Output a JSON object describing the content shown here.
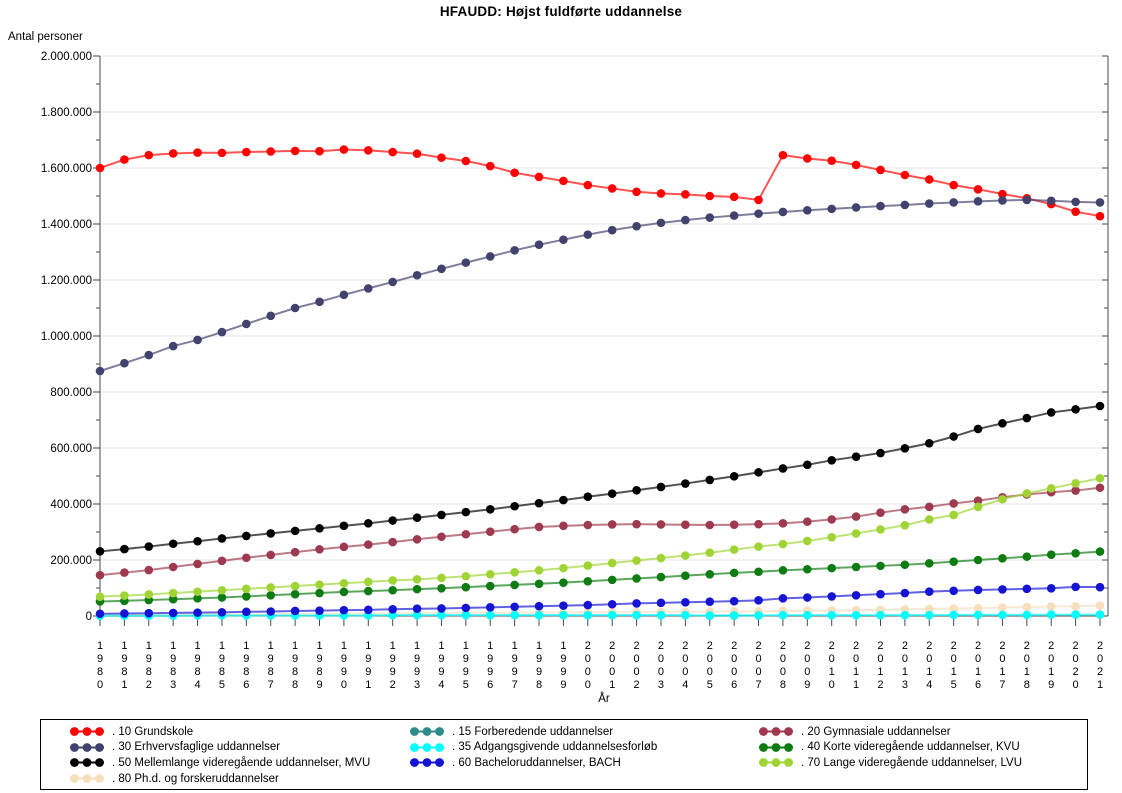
{
  "title": "HFAUDD: Højst fuldførte uddannelse",
  "chart_data": {
    "type": "line",
    "title": "HFAUDD: Højst fuldførte uddannelse",
    "xlabel": "År",
    "ylabel": "Antal personer",
    "ylim": [
      0,
      2000000
    ],
    "ytick_step": 200000,
    "ytick_labels": [
      "0",
      "200.000",
      "400.000",
      "600.000",
      "800.000",
      "1.000.000",
      "1.200.000",
      "1.400.000",
      "1.600.000",
      "1.800.000",
      "2.000.000"
    ],
    "grid": "horizontal-gray",
    "legend_position": "bottom-box-3-columns",
    "marker": "filled-circle-every-year",
    "x": [
      1980,
      1981,
      1982,
      1983,
      1984,
      1985,
      1986,
      1987,
      1988,
      1989,
      1990,
      1991,
      1992,
      1993,
      1994,
      1995,
      1996,
      1997,
      1998,
      1999,
      2000,
      2001,
      2002,
      2003,
      2004,
      2005,
      2006,
      2007,
      2008,
      2009,
      2010,
      2011,
      2012,
      2013,
      2014,
      2015,
      2016,
      2017,
      2018,
      2019,
      2020,
      2021
    ],
    "series": [
      {
        "code": "10",
        "label": ". 10 Grundskole",
        "color": "#FF0000",
        "values": [
          1600000,
          1630000,
          1646000,
          1652000,
          1655000,
          1654000,
          1657000,
          1659000,
          1661000,
          1660000,
          1666000,
          1663000,
          1657000,
          1651000,
          1637000,
          1625000,
          1607000,
          1583000,
          1568000,
          1554000,
          1539000,
          1527000,
          1515000,
          1509000,
          1506000,
          1500000,
          1497000,
          1486000,
          1646000,
          1634000,
          1626000,
          1611000,
          1593000,
          1575000,
          1559000,
          1539000,
          1524000,
          1507000,
          1492000,
          1471000,
          1444000,
          1428000
        ]
      },
      {
        "code": "15",
        "label": ". 15 Forberedende uddannelser",
        "color": "#2E8B8B",
        "values": [
          null,
          null,
          null,
          null,
          null,
          null,
          null,
          null,
          null,
          null,
          null,
          null,
          null,
          null,
          null,
          null,
          null,
          null,
          null,
          null,
          null,
          null,
          null,
          null,
          null,
          1000,
          1500,
          2000,
          null,
          null,
          null,
          null,
          null,
          null,
          null,
          null,
          null,
          null,
          null,
          null,
          null,
          null
        ]
      },
      {
        "code": "20",
        "label": ". 20 Gymnasiale uddannelser",
        "color": "#9E3A4F",
        "values": [
          146000,
          155000,
          164000,
          175000,
          186000,
          197000,
          208000,
          218000,
          228000,
          238000,
          247000,
          255000,
          264000,
          274000,
          283000,
          292000,
          301000,
          310000,
          318000,
          322000,
          325000,
          327000,
          328000,
          327000,
          326000,
          325000,
          326000,
          328000,
          331000,
          337000,
          345000,
          355000,
          369000,
          381000,
          390000,
          402000,
          412000,
          424000,
          434000,
          442000,
          448000,
          458000
        ]
      },
      {
        "code": "30",
        "label": ". 30 Erhvervsfaglige uddannelser",
        "color": "#42426E",
        "values": [
          875000,
          903000,
          932000,
          964000,
          986000,
          1014000,
          1043000,
          1072000,
          1100000,
          1122000,
          1147000,
          1170000,
          1193000,
          1217000,
          1240000,
          1262000,
          1284000,
          1306000,
          1326000,
          1344000,
          1362000,
          1378000,
          1392000,
          1404000,
          1414000,
          1423000,
          1430000,
          1437000,
          1443000,
          1449000,
          1454000,
          1459000,
          1464000,
          1468000,
          1473000,
          1477000,
          1481000,
          1484000,
          1486000,
          1483000,
          1479000,
          1477000
        ]
      },
      {
        "code": "35",
        "label": ". 35 Adgangsgivende uddannelsesforløb",
        "color": "#00FFFF",
        "values": [
          1000,
          1000,
          1000,
          1000,
          2000,
          2000,
          2000,
          2000,
          2000,
          2000,
          2000,
          2000,
          3000,
          3000,
          3000,
          3000,
          3000,
          3000,
          3000,
          3000,
          3000,
          3000,
          3000,
          3000,
          3000,
          2000,
          2000,
          2000,
          3000,
          3000,
          3000,
          3000,
          3000,
          3000,
          3000,
          4000,
          4000,
          4000,
          4000,
          5000,
          5000,
          5000
        ]
      },
      {
        "code": "40",
        "label": ". 40 Korte videregående uddannelser, KVU",
        "color": "#0E7C13",
        "values": [
          52000,
          54000,
          57000,
          60000,
          63000,
          66000,
          70000,
          74000,
          78000,
          82000,
          86000,
          89000,
          92000,
          96000,
          99000,
          103000,
          107000,
          111000,
          115000,
          119000,
          124000,
          129000,
          134000,
          139000,
          144000,
          149000,
          154000,
          158000,
          163000,
          167000,
          171000,
          175000,
          179000,
          183000,
          188000,
          194000,
          200000,
          206000,
          212000,
          219000,
          224000,
          230000
        ]
      },
      {
        "code": "50",
        "label": ". 50 Mellemlange videregående uddannelser, MVU",
        "color": "#000000",
        "values": [
          231000,
          239000,
          248000,
          258000,
          267000,
          277000,
          286000,
          295000,
          304000,
          313000,
          322000,
          331000,
          341000,
          351000,
          361000,
          371000,
          381000,
          392000,
          403000,
          414000,
          426000,
          437000,
          449000,
          461000,
          473000,
          486000,
          499000,
          513000,
          527000,
          540000,
          556000,
          569000,
          582000,
          599000,
          617000,
          641000,
          668000,
          688000,
          707000,
          727000,
          738000,
          750000
        ]
      },
      {
        "code": "60",
        "label": ". 60 Bacheloruddannelser, BACH",
        "color": "#1414D2",
        "values": [
          8000,
          9000,
          10000,
          11000,
          12000,
          13000,
          15000,
          16000,
          18000,
          19000,
          21000,
          22000,
          24000,
          26000,
          27000,
          29000,
          31000,
          33000,
          35000,
          37000,
          39000,
          42000,
          45000,
          47000,
          49000,
          51000,
          53000,
          56000,
          63000,
          66000,
          70000,
          74000,
          78000,
          82000,
          87000,
          90000,
          93000,
          95000,
          97000,
          99000,
          104000,
          103000
        ]
      },
      {
        "code": "70",
        "label": ". 70 Lange videregående uddannelser, LVU",
        "color": "#9FD434",
        "values": [
          69000,
          73000,
          77000,
          82000,
          87000,
          92000,
          97000,
          102000,
          107000,
          112000,
          117000,
          122000,
          127000,
          131000,
          136000,
          142000,
          149000,
          156000,
          163000,
          171000,
          180000,
          189000,
          198000,
          207000,
          216000,
          226000,
          237000,
          248000,
          257000,
          268000,
          281000,
          295000,
          309000,
          324000,
          345000,
          361000,
          390000,
          417000,
          438000,
          456000,
          474000,
          492000
        ]
      },
      {
        "code": "80",
        "label": ". 80 Ph.d. og forskeruddannelser",
        "color": "#F7DFBD",
        "values": [
          3000,
          4000,
          4000,
          5000,
          5000,
          6000,
          6000,
          7000,
          7000,
          8000,
          8000,
          9000,
          9000,
          10000,
          10000,
          11000,
          11000,
          12000,
          12000,
          13000,
          13000,
          14000,
          14000,
          15000,
          15000,
          16000,
          17000,
          17000,
          18000,
          19000,
          20000,
          21000,
          22000,
          24000,
          25000,
          27000,
          28000,
          30000,
          32000,
          34000,
          35000,
          37000
        ]
      }
    ]
  },
  "colors": {
    "gridline": "#E4E4E4",
    "axis": "#4A4A4A",
    "text": "#000000",
    "legend_border": "#000000"
  }
}
